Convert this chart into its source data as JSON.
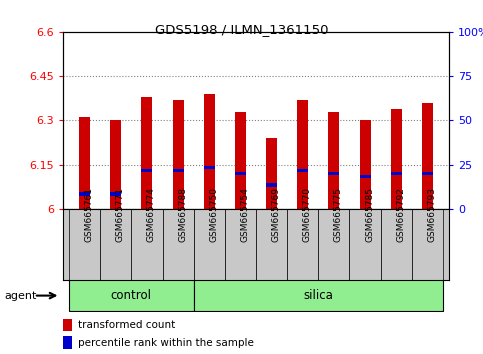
{
  "title": "GDS5198 / ILMN_1361150",
  "samples": [
    "GSM665761",
    "GSM665771",
    "GSM665774",
    "GSM665788",
    "GSM665750",
    "GSM665754",
    "GSM665769",
    "GSM665770",
    "GSM665775",
    "GSM665785",
    "GSM665792",
    "GSM665793"
  ],
  "red_values": [
    6.31,
    6.3,
    6.38,
    6.37,
    6.39,
    6.33,
    6.24,
    6.37,
    6.33,
    6.3,
    6.34,
    6.36
  ],
  "blue_values": [
    6.05,
    6.05,
    6.13,
    6.13,
    6.14,
    6.12,
    6.08,
    6.13,
    6.12,
    6.11,
    6.12,
    6.12
  ],
  "y_min": 6.0,
  "y_max": 6.6,
  "y_ticks": [
    6.0,
    6.15,
    6.3,
    6.45,
    6.6
  ],
  "y_tick_labels": [
    "6",
    "6.15",
    "6.3",
    "6.45",
    "6.6"
  ],
  "right_y_ticks": [
    6.0,
    6.15,
    6.3,
    6.45,
    6.6
  ],
  "right_y_labels": [
    "0",
    "25",
    "50",
    "75",
    "100%"
  ],
  "bar_width": 0.35,
  "red_color": "#CC0000",
  "blue_color": "#0000CC",
  "green_color": "#90EE90",
  "gray_color": "#C8C8C8",
  "bar_base": 6.0,
  "control_count": 4,
  "silica_count": 8
}
